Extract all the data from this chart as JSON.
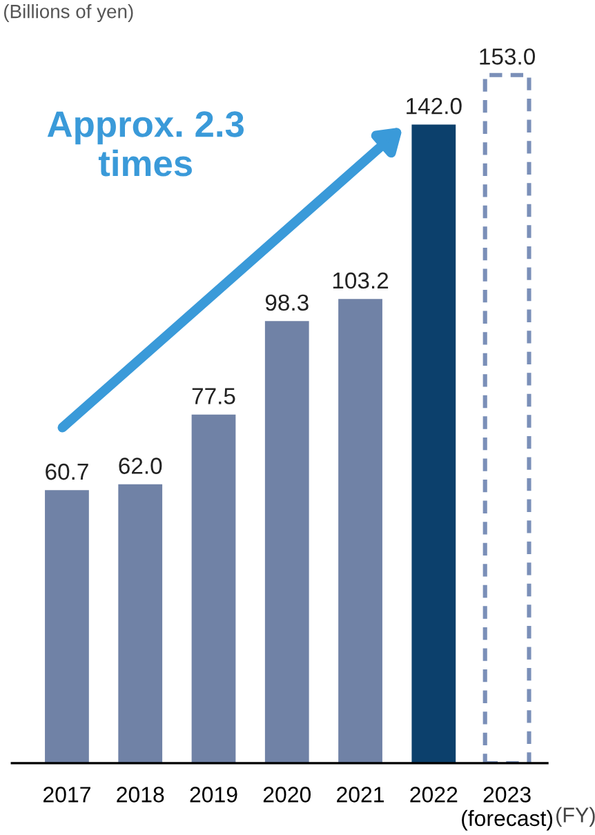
{
  "chart_data": {
    "type": "bar",
    "ylabel": "(Billions of yen)",
    "xlabel": "(FY)",
    "categories": [
      "2017",
      "2018",
      "2019",
      "2020",
      "2021",
      "2022",
      "2023\n(forecast)"
    ],
    "series": [
      {
        "color": "#7082a6",
        "values": [
          60.7,
          62.0,
          77.5,
          98.3,
          103.2,
          null,
          null
        ],
        "value_labels": [
          "60.7",
          "62.0",
          "77.5",
          "98.3",
          "103.2",
          null,
          null
        ]
      },
      {
        "color": "#0c406c",
        "values": [
          null,
          null,
          null,
          null,
          null,
          142.0,
          null
        ],
        "value_labels": [
          null,
          null,
          null,
          null,
          null,
          "142.0",
          null
        ]
      },
      {
        "color": "#7a8fb8",
        "line_style": "dashed",
        "values": [
          null,
          null,
          null,
          null,
          null,
          null,
          153.0
        ],
        "value_labels": [
          null,
          null,
          null,
          null,
          null,
          null,
          "153.0"
        ]
      }
    ],
    "tick_labels": "x",
    "grid": false,
    "legend": false,
    "annotations": [
      "Approx. 2.3\ntimes"
    ]
  }
}
